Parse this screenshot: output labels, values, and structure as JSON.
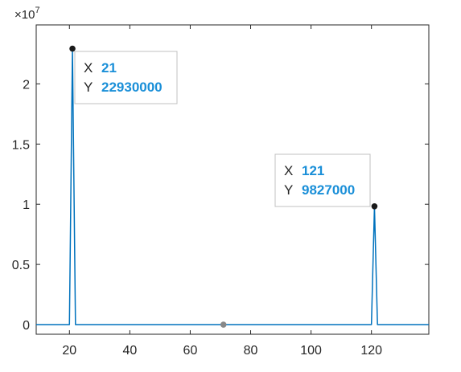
{
  "colors": {
    "series": "#0072BD",
    "marker": "#1a1a1a",
    "origin_marker": "#888888",
    "axis": "#262626",
    "datatip_border": "#c0c0c0",
    "datatip_value": "#1a8fd8"
  },
  "chart_data": {
    "type": "line",
    "title": "",
    "xlabel": "",
    "ylabel": "",
    "xlim": [
      9,
      139
    ],
    "ylim": [
      -800000,
      24900000
    ],
    "y_exponent_label": "×10",
    "y_exponent_power": "7",
    "x_ticks": [
      20,
      40,
      60,
      80,
      100,
      120
    ],
    "x_tick_labels": [
      "20",
      "40",
      "60",
      "80",
      "100",
      "120"
    ],
    "y_ticks": [
      0,
      5000000,
      10000000,
      15000000,
      20000000
    ],
    "y_tick_labels": [
      "0",
      "0.5",
      "1",
      "1.5",
      "2"
    ],
    "grid": false,
    "box": true,
    "series": [
      {
        "x": [
          9,
          20,
          21,
          22,
          120,
          121,
          122,
          139
        ],
        "y": [
          0,
          0,
          22930000,
          0,
          0,
          9827000,
          0,
          0
        ]
      }
    ],
    "highlighted_points": [
      {
        "x": 21,
        "y": 22930000
      },
      {
        "x": 121,
        "y": 9827000
      },
      {
        "x": 71,
        "y": 0
      }
    ],
    "datatips": [
      {
        "x_key": "X",
        "x_value": "21",
        "y_key": "Y",
        "y_value": "22930000"
      },
      {
        "x_key": "X",
        "x_value": "121",
        "y_key": "Y",
        "y_value": "9827000"
      }
    ]
  }
}
